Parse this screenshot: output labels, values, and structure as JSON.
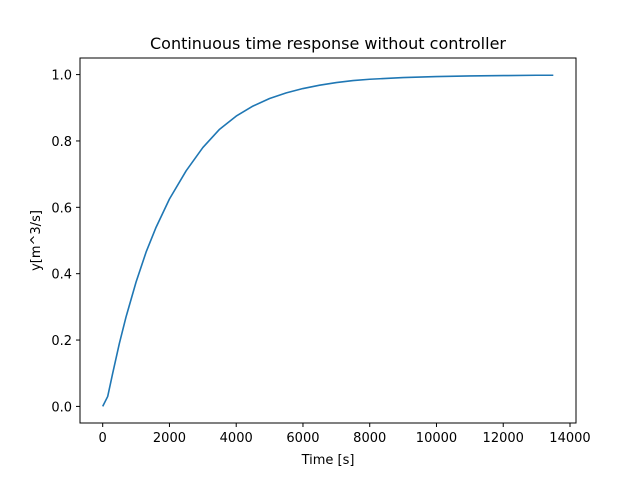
{
  "chart_data": {
    "type": "line",
    "title": "Continuous time response without controller",
    "xlabel": "Time [s]",
    "ylabel": "y[m^3/s]",
    "xlim": [
      -680,
      14180
    ],
    "ylim": [
      -0.05,
      1.05
    ],
    "x_ticks": [
      0,
      2000,
      4000,
      6000,
      8000,
      10000,
      12000,
      14000
    ],
    "x_tick_labels": [
      "0",
      "2000",
      "4000",
      "6000",
      "8000",
      "10000",
      "12000",
      "14000"
    ],
    "y_ticks": [
      0.0,
      0.2,
      0.4,
      0.6,
      0.8,
      1.0
    ],
    "y_tick_labels": [
      "0.0",
      "0.2",
      "0.4",
      "0.6",
      "0.8",
      "1.0"
    ],
    "grid": false,
    "legend": "none",
    "series": [
      {
        "color": "#1f77b4",
        "x": [
          0,
          150,
          300,
          500,
          700,
          1000,
          1300,
          1600,
          2000,
          2500,
          3000,
          3500,
          4000,
          4500,
          5000,
          5500,
          6000,
          6500,
          7000,
          7500,
          8000,
          9000,
          10000,
          11000,
          12000,
          13000,
          13500
        ],
        "y": [
          0.0,
          0.03,
          0.1,
          0.19,
          0.27,
          0.375,
          0.465,
          0.54,
          0.625,
          0.71,
          0.78,
          0.835,
          0.875,
          0.905,
          0.928,
          0.945,
          0.958,
          0.968,
          0.976,
          0.982,
          0.986,
          0.991,
          0.994,
          0.996,
          0.997,
          0.998,
          0.998
        ]
      }
    ]
  }
}
